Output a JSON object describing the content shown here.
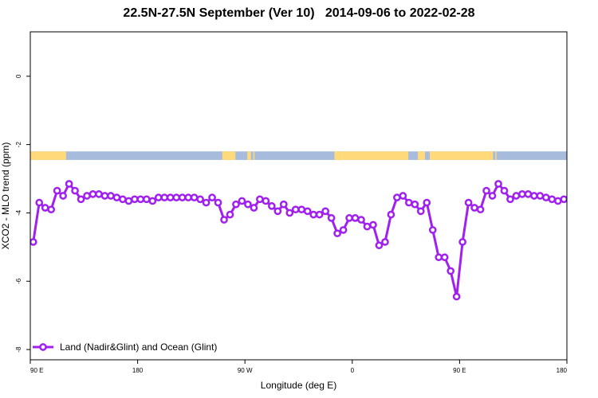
{
  "chart_data": {
    "type": "line",
    "title": "22.5N-27.5N September (Ver 10)   2014-09-06 to 2022-02-28",
    "xlabel": "Longitude (deg E)",
    "ylabel": "XCO2 - MLO trend (ppm)",
    "xlim": [
      90,
      540
    ],
    "ylim": [
      -8.3,
      1.3
    ],
    "x_ticks": [
      {
        "value": 90,
        "label": "90 E"
      },
      {
        "value": 180,
        "label": "180"
      },
      {
        "value": 270,
        "label": "90 W"
      },
      {
        "value": 360,
        "label": "0"
      },
      {
        "value": 450,
        "label": "90 E"
      },
      {
        "value": 540,
        "label": "180"
      }
    ],
    "y_ticks": [
      {
        "value": 0,
        "label": "0"
      },
      {
        "value": -2,
        "label": "-2"
      },
      {
        "value": -4,
        "label": "-4"
      },
      {
        "value": -6,
        "label": "-6"
      },
      {
        "value": -8,
        "label": "-8"
      }
    ],
    "grid": false,
    "legend_position": "bottom-left",
    "land_ocean_strip": {
      "y_range": [
        -2.45,
        -2.2
      ],
      "land_color": "#FFD97A",
      "ocean_color": "#A7BCDD",
      "land_segments": [
        [
          90,
          120
        ],
        [
          251,
          262
        ],
        [
          272,
          275
        ],
        [
          277,
          278
        ],
        [
          345,
          407
        ],
        [
          415,
          421
        ],
        [
          425,
          478
        ],
        [
          480,
          481
        ]
      ]
    },
    "series": [
      {
        "name": "Land (Nadir&Glint) and Ocean (Glint)",
        "color": "#A020F0",
        "x": [
          92.5,
          97.5,
          102.5,
          107.5,
          112.5,
          117.5,
          122.5,
          127.5,
          132.5,
          137.5,
          142.5,
          147.5,
          152.5,
          157.5,
          162.5,
          167.5,
          172.5,
          177.5,
          182.5,
          187.5,
          192.5,
          197.5,
          202.5,
          207.5,
          212.5,
          217.5,
          222.5,
          227.5,
          232.5,
          237.5,
          242.5,
          247.5,
          252.5,
          257.5,
          262.5,
          267.5,
          272.5,
          277.5,
          282.5,
          287.5,
          292.5,
          297.5,
          302.5,
          307.5,
          312.5,
          317.5,
          322.5,
          327.5,
          332.5,
          337.5,
          342.5,
          347.5,
          352.5,
          357.5,
          362.5,
          367.5,
          372.5,
          377.5,
          382.5,
          387.5,
          392.5,
          397.5,
          402.5,
          407.5,
          412.5,
          417.5,
          422.5,
          427.5,
          432.5,
          437.5,
          442.5,
          447.5,
          452.5,
          457.5,
          462.5,
          467.5,
          472.5,
          477.5,
          482.5,
          487.5,
          492.5,
          497.5,
          502.5,
          507.5,
          512.5,
          517.5,
          522.5,
          527.5,
          532.5,
          537.5
        ],
        "values": [
          -4.85,
          -3.7,
          -3.85,
          -3.9,
          -3.35,
          -3.5,
          -3.15,
          -3.35,
          -3.6,
          -3.5,
          -3.45,
          -3.45,
          -3.5,
          -3.5,
          -3.55,
          -3.6,
          -3.65,
          -3.6,
          -3.6,
          -3.6,
          -3.65,
          -3.55,
          -3.55,
          -3.55,
          -3.55,
          -3.55,
          -3.55,
          -3.55,
          -3.6,
          -3.7,
          -3.55,
          -3.7,
          -4.2,
          -4.05,
          -3.75,
          -3.65,
          -3.75,
          -3.85,
          -3.6,
          -3.65,
          -3.8,
          -3.95,
          -3.75,
          -4.0,
          -3.9,
          -3.9,
          -3.95,
          -4.05,
          -4.05,
          -3.95,
          -4.15,
          -4.6,
          -4.5,
          -4.15,
          -4.15,
          -4.2,
          -4.4,
          -4.35,
          -4.95,
          -4.85,
          -4.05,
          -3.55,
          -3.5,
          -3.7,
          -3.75,
          -3.95,
          -3.7,
          -4.5,
          -5.3,
          -5.3,
          -5.7,
          -6.45,
          -4.85,
          -3.7,
          -3.85,
          -3.9,
          -3.35,
          -3.5,
          -3.15,
          -3.35,
          -3.6,
          -3.5,
          -3.45,
          -3.45,
          -3.5,
          -3.5,
          -3.55,
          -3.6,
          -3.65,
          -3.6
        ]
      }
    ]
  }
}
